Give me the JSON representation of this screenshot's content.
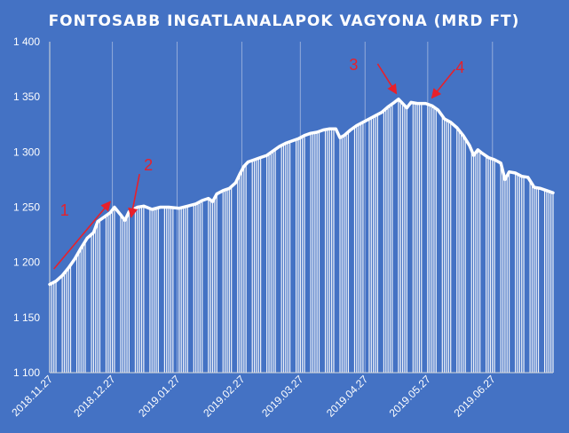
{
  "chart_data": {
    "type": "area",
    "title": "FONTOSABB  INGATLANALAPOK  VAGYONA  (MRD FT)",
    "xlabel": "",
    "ylabel": "",
    "ylim": [
      1100,
      1400
    ],
    "yticks": [
      1100,
      1150,
      1200,
      1250,
      1300,
      1350,
      1400
    ],
    "ytick_labels": [
      "1 100",
      "1 150",
      "1 200",
      "1 250",
      "1 300",
      "1 350",
      "1 400"
    ],
    "x_start": "2018-11-27",
    "x_end": "2019-07-26",
    "xticks": [
      "2018-11-27",
      "2018-12-27",
      "2019-01-27",
      "2019-02-27",
      "2019-03-27",
      "2019-04-27",
      "2019-05-27",
      "2019-06-27"
    ],
    "xtick_labels": [
      "2018.11.27",
      "2018.12.27",
      "2019.01.27",
      "2019.02.27",
      "2019.03.27",
      "2019.04.27",
      "2019.05.27",
      "2019.06.27"
    ],
    "grid": "vertical",
    "line_color": "#ffffff",
    "background_color": "#4472c4",
    "series": [
      {
        "points": [
          [
            "2018-11-27",
            1180
          ],
          [
            "2018-11-30",
            1183
          ],
          [
            "2018-12-03",
            1188
          ],
          [
            "2018-12-06",
            1195
          ],
          [
            "2018-12-09",
            1203
          ],
          [
            "2018-12-12",
            1213
          ],
          [
            "2018-12-15",
            1222
          ],
          [
            "2018-12-18",
            1227
          ],
          [
            "2018-12-20",
            1237
          ],
          [
            "2018-12-23",
            1241
          ],
          [
            "2018-12-26",
            1245
          ],
          [
            "2018-12-28",
            1250
          ],
          [
            "2018-12-31",
            1243
          ],
          [
            "2019-01-02",
            1238
          ],
          [
            "2019-01-04",
            1246
          ],
          [
            "2019-01-08",
            1250
          ],
          [
            "2019-01-11",
            1251
          ],
          [
            "2019-01-15",
            1248
          ],
          [
            "2019-01-19",
            1250
          ],
          [
            "2019-01-23",
            1250
          ],
          [
            "2019-01-28",
            1249
          ],
          [
            "2019-02-01",
            1251
          ],
          [
            "2019-02-05",
            1253
          ],
          [
            "2019-02-08",
            1256
          ],
          [
            "2019-02-11",
            1258
          ],
          [
            "2019-02-13",
            1255
          ],
          [
            "2019-02-15",
            1262
          ],
          [
            "2019-02-18",
            1265
          ],
          [
            "2019-02-21",
            1267
          ],
          [
            "2019-02-24",
            1272
          ],
          [
            "2019-02-26",
            1280
          ],
          [
            "2019-02-28",
            1287
          ],
          [
            "2019-03-02",
            1291
          ],
          [
            "2019-03-05",
            1293
          ],
          [
            "2019-03-08",
            1295
          ],
          [
            "2019-03-11",
            1297
          ],
          [
            "2019-03-14",
            1301
          ],
          [
            "2019-03-17",
            1305
          ],
          [
            "2019-03-20",
            1308
          ],
          [
            "2019-03-23",
            1310
          ],
          [
            "2019-03-26",
            1312
          ],
          [
            "2019-03-29",
            1315
          ],
          [
            "2019-04-01",
            1317
          ],
          [
            "2019-04-04",
            1318
          ],
          [
            "2019-04-07",
            1320
          ],
          [
            "2019-04-10",
            1321
          ],
          [
            "2019-04-13",
            1321
          ],
          [
            "2019-04-15",
            1313
          ],
          [
            "2019-04-17",
            1315
          ],
          [
            "2019-04-20",
            1320
          ],
          [
            "2019-04-23",
            1324
          ],
          [
            "2019-04-26",
            1327
          ],
          [
            "2019-04-29",
            1330
          ],
          [
            "2019-05-02",
            1333
          ],
          [
            "2019-05-05",
            1336
          ],
          [
            "2019-05-08",
            1341
          ],
          [
            "2019-05-11",
            1345
          ],
          [
            "2019-05-13",
            1348
          ],
          [
            "2019-05-15",
            1344
          ],
          [
            "2019-05-17",
            1340
          ],
          [
            "2019-05-19",
            1345
          ],
          [
            "2019-05-22",
            1344
          ],
          [
            "2019-05-26",
            1344
          ],
          [
            "2019-05-29",
            1342
          ],
          [
            "2019-06-01",
            1338
          ],
          [
            "2019-06-04",
            1330
          ],
          [
            "2019-06-07",
            1327
          ],
          [
            "2019-06-10",
            1322
          ],
          [
            "2019-06-13",
            1315
          ],
          [
            "2019-06-16",
            1306
          ],
          [
            "2019-06-18",
            1297
          ],
          [
            "2019-06-20",
            1302
          ],
          [
            "2019-06-22",
            1299
          ],
          [
            "2019-06-25",
            1295
          ],
          [
            "2019-06-28",
            1293
          ],
          [
            "2019-07-01",
            1290
          ],
          [
            "2019-07-03",
            1275
          ],
          [
            "2019-07-05",
            1282
          ],
          [
            "2019-07-08",
            1281
          ],
          [
            "2019-07-11",
            1278
          ],
          [
            "2019-07-14",
            1277
          ],
          [
            "2019-07-17",
            1268
          ],
          [
            "2019-07-20",
            1267
          ],
          [
            "2019-07-23",
            1265
          ],
          [
            "2019-07-26",
            1263
          ]
        ]
      }
    ],
    "annotations": [
      {
        "label": "1",
        "color": "#e8202a",
        "arrow_from": [
          "2018-11-29",
          1194
        ],
        "arrow_to": [
          "2018-12-26",
          1255
        ]
      },
      {
        "label": "2",
        "color": "#e8202a",
        "arrow_from": [
          "2019-01-09",
          1280
        ],
        "arrow_to": [
          "2019-01-05",
          1241
        ]
      },
      {
        "label": "3",
        "color": "#e8202a",
        "arrow_from": [
          "2019-05-03",
          1380
        ],
        "arrow_to": [
          "2019-05-12",
          1353
        ]
      },
      {
        "label": "4",
        "color": "#e8202a",
        "arrow_from": [
          "2019-06-09",
          1375
        ],
        "arrow_to": [
          "2019-05-29",
          1349
        ]
      }
    ]
  }
}
